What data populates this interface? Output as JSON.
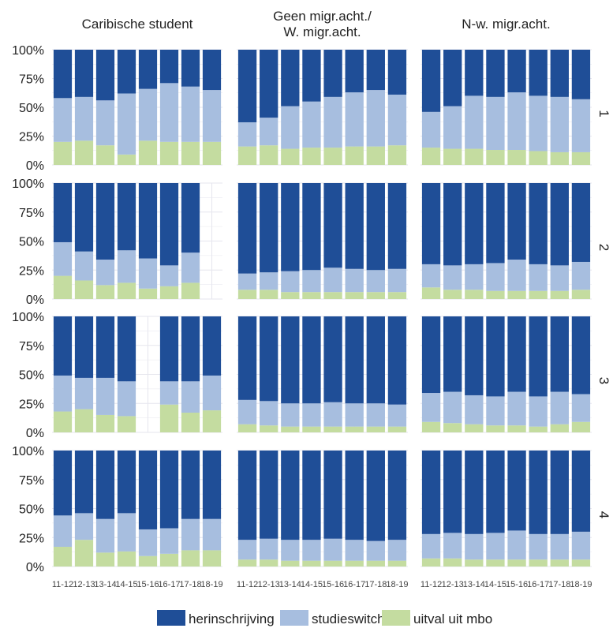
{
  "chart_data": {
    "type": "bar",
    "stacked": true,
    "facets": {
      "columns": [
        "Caribische student",
        "Geen migr.acht./\nW. migr.acht.",
        "N-w. migr.acht."
      ],
      "rows": [
        "1",
        "2",
        "3",
        "4"
      ]
    },
    "categories": [
      "11-12",
      "12-13",
      "13-14",
      "14-15",
      "15-16",
      "16-17",
      "17-18",
      "18-19"
    ],
    "y_ticks": [
      "0%",
      "25%",
      "50%",
      "75%",
      "100%"
    ],
    "ylim": [
      0,
      100
    ],
    "grid": true,
    "legend_position": "bottom",
    "series_names": [
      "herinschrijving",
      "studieswitch",
      "uitval uit mbo"
    ],
    "colors": {
      "herinschrijving": "#1f4e97",
      "studieswitch": "#a7bedf",
      "uitval uit mbo": "#c4dca0",
      "grid": "#e6e6ee"
    },
    "panels": [
      {
        "row": "1",
        "col": "Caribische student",
        "uitval": [
          20,
          21,
          17,
          9,
          21,
          20,
          20,
          20
        ],
        "studieswitch": [
          38,
          38,
          39,
          53,
          45,
          51,
          48,
          45
        ],
        "herinschrijving": [
          42,
          41,
          44,
          38,
          34,
          29,
          32,
          35
        ]
      },
      {
        "row": "1",
        "col": "Geen migr.acht./W. migr.acht.",
        "uitval": [
          16,
          17,
          14,
          15,
          15,
          16,
          16,
          17
        ],
        "studieswitch": [
          21,
          24,
          37,
          40,
          44,
          47,
          49,
          44
        ],
        "herinschrijving": [
          63,
          59,
          49,
          45,
          41,
          37,
          35,
          39
        ]
      },
      {
        "row": "1",
        "col": "N-w. migr.acht.",
        "uitval": [
          15,
          14,
          14,
          13,
          13,
          12,
          11,
          11
        ],
        "studieswitch": [
          31,
          37,
          46,
          46,
          50,
          48,
          48,
          46
        ],
        "herinschrijving": [
          54,
          49,
          40,
          41,
          37,
          40,
          41,
          43
        ]
      },
      {
        "row": "2",
        "col": "Caribische student",
        "uitval": [
          20,
          16,
          12,
          14,
          9,
          11,
          14,
          null
        ],
        "studieswitch": [
          29,
          25,
          22,
          28,
          26,
          18,
          26,
          null
        ],
        "herinschrijving": [
          51,
          59,
          66,
          58,
          65,
          71,
          60,
          null
        ]
      },
      {
        "row": "2",
        "col": "Geen migr.acht./W. migr.acht.",
        "uitval": [
          8,
          8,
          6,
          6,
          6,
          6,
          6,
          6
        ],
        "studieswitch": [
          14,
          15,
          18,
          19,
          21,
          20,
          19,
          20
        ],
        "herinschrijving": [
          78,
          77,
          76,
          75,
          73,
          74,
          75,
          74
        ]
      },
      {
        "row": "2",
        "col": "N-w. migr.acht.",
        "uitval": [
          10,
          8,
          8,
          7,
          7,
          7,
          7,
          8
        ],
        "studieswitch": [
          20,
          21,
          22,
          24,
          27,
          23,
          22,
          24
        ],
        "herinschrijving": [
          70,
          71,
          70,
          69,
          66,
          70,
          71,
          68
        ]
      },
      {
        "row": "3",
        "col": "Caribische student",
        "uitval": [
          18,
          20,
          15,
          14,
          null,
          24,
          17,
          19
        ],
        "studieswitch": [
          31,
          27,
          32,
          30,
          null,
          20,
          27,
          30
        ],
        "herinschrijving": [
          51,
          53,
          53,
          56,
          null,
          56,
          56,
          51
        ]
      },
      {
        "row": "3",
        "col": "Geen migr.acht./W. migr.acht.",
        "uitval": [
          7,
          6,
          5,
          5,
          5,
          5,
          5,
          5
        ],
        "studieswitch": [
          21,
          21,
          20,
          20,
          21,
          20,
          20,
          19
        ],
        "herinschrijving": [
          72,
          73,
          75,
          75,
          74,
          75,
          75,
          76
        ]
      },
      {
        "row": "3",
        "col": "N-w. migr.acht.",
        "uitval": [
          9,
          8,
          7,
          6,
          6,
          5,
          7,
          9
        ],
        "studieswitch": [
          25,
          27,
          25,
          25,
          29,
          26,
          28,
          24
        ],
        "herinschrijving": [
          66,
          65,
          68,
          69,
          65,
          69,
          65,
          67
        ]
      },
      {
        "row": "4",
        "col": "Caribische student",
        "uitval": [
          17,
          23,
          12,
          13,
          9,
          11,
          14,
          14
        ],
        "studieswitch": [
          27,
          23,
          29,
          33,
          23,
          22,
          27,
          27
        ],
        "herinschrijving": [
          56,
          54,
          59,
          54,
          68,
          67,
          59,
          59
        ]
      },
      {
        "row": "4",
        "col": "Geen migr.acht./W. migr.acht.",
        "uitval": [
          6,
          6,
          5,
          5,
          5,
          5,
          5,
          5
        ],
        "studieswitch": [
          17,
          18,
          18,
          18,
          19,
          18,
          17,
          18
        ],
        "herinschrijving": [
          77,
          76,
          77,
          77,
          76,
          77,
          78,
          77
        ]
      },
      {
        "row": "4",
        "col": "N-w. migr.acht.",
        "uitval": [
          7,
          7,
          6,
          6,
          6,
          6,
          6,
          6
        ],
        "studieswitch": [
          21,
          22,
          22,
          23,
          25,
          22,
          22,
          24
        ],
        "herinschrijving": [
          72,
          71,
          72,
          71,
          69,
          72,
          72,
          70
        ]
      }
    ]
  }
}
